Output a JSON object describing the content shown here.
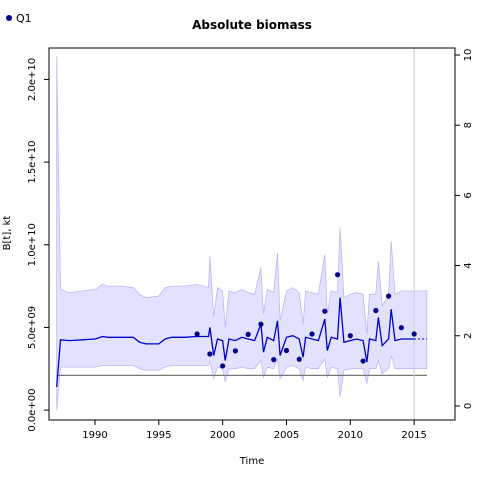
{
  "chart_data": {
    "type": "line",
    "title": "Absolute biomass",
    "xlabel": "Time",
    "ylabel": "B[t], kt",
    "xlim": [
      1986.4,
      2018.2
    ],
    "ylim": [
      -600000000,
      21900000000
    ],
    "y2lim": [
      -0.4,
      10.2
    ],
    "x_ticks": [
      1990,
      1995,
      2000,
      2005,
      2010,
      2015
    ],
    "y_ticks": [
      0,
      5000000000,
      10000000000,
      15000000000,
      20000000000
    ],
    "y_tick_labels": [
      "0.0e+00",
      "5.0e+09",
      "1.0e+10",
      "1.5e+10",
      "2.0e+10"
    ],
    "y2_ticks": [
      0,
      2,
      4,
      6,
      8,
      10
    ],
    "y2_tick_labels": [
      "0",
      "2",
      "4",
      "6",
      "8",
      "10"
    ],
    "legend": {
      "position": "top-left",
      "entries": [
        "Q1"
      ]
    },
    "reference_line": {
      "y": 2100000000,
      "x_start": 1987,
      "x_end": 2016
    },
    "vertical_line_x": 2015,
    "colors": {
      "band": "#e2e2ff",
      "band_edge": "#b8b8f5",
      "line": "#0000cc",
      "points": "#00008b",
      "reference": "#777777",
      "vline": "#cccccc"
    },
    "series": [
      {
        "name": "Q1",
        "type": "scatter",
        "axis": "right",
        "x": [
          1998,
          1999,
          2000,
          2001,
          2002,
          2003,
          2004,
          2005,
          2006,
          2007,
          2008,
          2009,
          2010,
          2011,
          2012,
          2013,
          2014,
          2015
        ],
        "y": [
          2.05,
          1.48,
          1.14,
          1.57,
          2.04,
          2.33,
          1.32,
          1.58,
          1.33,
          2.05,
          2.7,
          3.74,
          2.0,
          1.28,
          2.72,
          3.13,
          2.23,
          2.05
        ]
      }
    ],
    "biomass_line": {
      "x": [
        1987,
        1987.3,
        1988,
        1989,
        1990,
        1990.6,
        1991,
        1992,
        1993,
        1993.5,
        1994,
        1995,
        1995.5,
        1996,
        1997,
        1998,
        1998.9,
        1999,
        1999.3,
        1999.6,
        2000,
        2000.2,
        2000.5,
        2001,
        2001.5,
        2002,
        2002.5,
        2003,
        2003.2,
        2003.5,
        2004,
        2004.3,
        2004.5,
        2005,
        2005.5,
        2006,
        2006.3,
        2006.5,
        2007,
        2007.5,
        2008,
        2008.2,
        2008.5,
        2009,
        2009.2,
        2009.5,
        2010,
        2010.5,
        2011,
        2011.3,
        2011.5,
        2012,
        2012.2,
        2012.5,
        2013,
        2013.2,
        2013.5,
        2014,
        2015,
        2015.5
      ],
      "y": [
        1400000000,
        4250000000,
        4200000000,
        4250000000,
        4300000000,
        4450000000,
        4400000000,
        4400000000,
        4400000000,
        4100000000,
        4000000000,
        4000000000,
        4300000000,
        4400000000,
        4400000000,
        4450000000,
        4450000000,
        5000000000,
        3300000000,
        4300000000,
        4200000000,
        3000000000,
        4300000000,
        4200000000,
        4400000000,
        4300000000,
        4200000000,
        5200000000,
        3500000000,
        4400000000,
        4200000000,
        5400000000,
        3300000000,
        4400000000,
        4500000000,
        4300000000,
        3200000000,
        4400000000,
        4300000000,
        4200000000,
        5500000000,
        3600000000,
        4400000000,
        4300000000,
        6800000000,
        4100000000,
        4200000000,
        4300000000,
        4200000000,
        2900000000,
        4300000000,
        4200000000,
        5600000000,
        3900000000,
        4300000000,
        6100000000,
        4200000000,
        4300000000,
        4300000000,
        4300000000
      ],
      "dashed_from_x": 2015
    },
    "confidence_band": {
      "x": [
        1987,
        1987.3,
        1988,
        1989,
        1990,
        1990.6,
        1991,
        1992,
        1993,
        1993.5,
        1994,
        1995,
        1995.5,
        1996,
        1997,
        1998,
        1998.9,
        1999,
        1999.3,
        1999.6,
        2000,
        2000.2,
        2000.5,
        2001,
        2001.5,
        2002,
        2002.5,
        2003,
        2003.2,
        2003.5,
        2004,
        2004.3,
        2004.5,
        2005,
        2005.5,
        2006,
        2006.3,
        2006.5,
        2007,
        2007.5,
        2008,
        2008.2,
        2008.5,
        2009,
        2009.2,
        2009.5,
        2010,
        2010.5,
        2011,
        2011.3,
        2011.5,
        2012,
        2012.2,
        2012.5,
        2013,
        2013.2,
        2013.5,
        2014,
        2015,
        2016
      ],
      "upper": [
        21400000000,
        7300000000,
        7100000000,
        7200000000,
        7300000000,
        7600000000,
        7500000000,
        7500000000,
        7400000000,
        7000000000,
        6800000000,
        6900000000,
        7400000000,
        7500000000,
        7500000000,
        7600000000,
        7400000000,
        9300000000,
        5600000000,
        7400000000,
        7200000000,
        5000000000,
        7200000000,
        7100000000,
        7300000000,
        7100000000,
        7000000000,
        8600000000,
        5800000000,
        7300000000,
        7100000000,
        9500000000,
        5400000000,
        7200000000,
        7400000000,
        7100000000,
        5200000000,
        7200000000,
        7100000000,
        7000000000,
        9400000000,
        5800000000,
        7200000000,
        7100000000,
        11000000000,
        6800000000,
        7000000000,
        7100000000,
        7000000000,
        4600000000,
        7000000000,
        7000000000,
        9000000000,
        6300000000,
        7000000000,
        10200000000,
        7000000000,
        7200000000,
        7200000000,
        7200000000
      ],
      "lower": [
        0,
        2600000000,
        2600000000,
        2600000000,
        2600000000,
        2700000000,
        2700000000,
        2700000000,
        2700000000,
        2500000000,
        2400000000,
        2400000000,
        2600000000,
        2700000000,
        2700000000,
        2700000000,
        2700000000,
        3000000000,
        1900000000,
        2600000000,
        2500000000,
        1700000000,
        2500000000,
        2500000000,
        2600000000,
        2500000000,
        2500000000,
        3000000000,
        2000000000,
        2600000000,
        2500000000,
        3100000000,
        1900000000,
        2600000000,
        2700000000,
        2500000000,
        1800000000,
        2600000000,
        2500000000,
        2500000000,
        3100000000,
        2000000000,
        2600000000,
        2500000000,
        800000000,
        2400000000,
        2500000000,
        2500000000,
        2500000000,
        1600000000,
        2500000000,
        2500000000,
        3000000000,
        2200000000,
        2500000000,
        3300000000,
        2500000000,
        2500000000,
        2500000000,
        2500000000
      ]
    }
  }
}
